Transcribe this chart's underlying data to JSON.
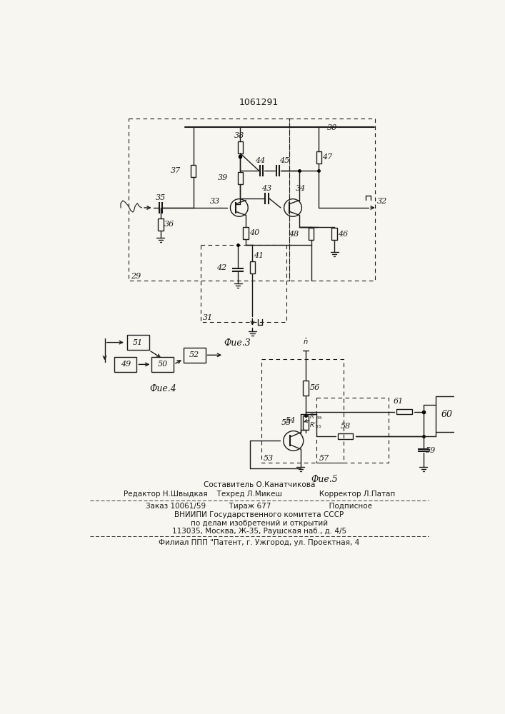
{
  "title": "1061291",
  "fig3_label": "Фие.3",
  "fig4_label": "Фие.4",
  "fig5_label": "Фие.5",
  "bg_color": "#f8f6f0"
}
